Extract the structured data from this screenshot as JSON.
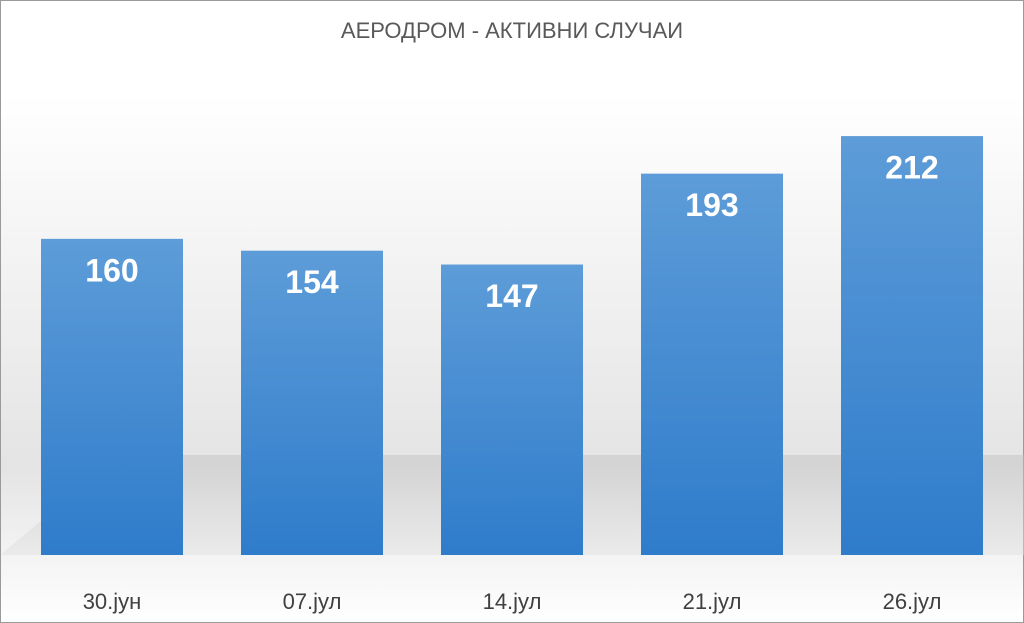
{
  "chart_data": {
    "type": "bar",
    "title": "АЕРОДРОМ - АКТИВНИ СЛУЧАИ",
    "categories": [
      "30.јун",
      "07.јул",
      "14.јул",
      "21.јул",
      "26.јул"
    ],
    "values": [
      160,
      154,
      147,
      193,
      212
    ],
    "color": "#4a8fd6",
    "ylim": [
      0,
      250
    ]
  }
}
